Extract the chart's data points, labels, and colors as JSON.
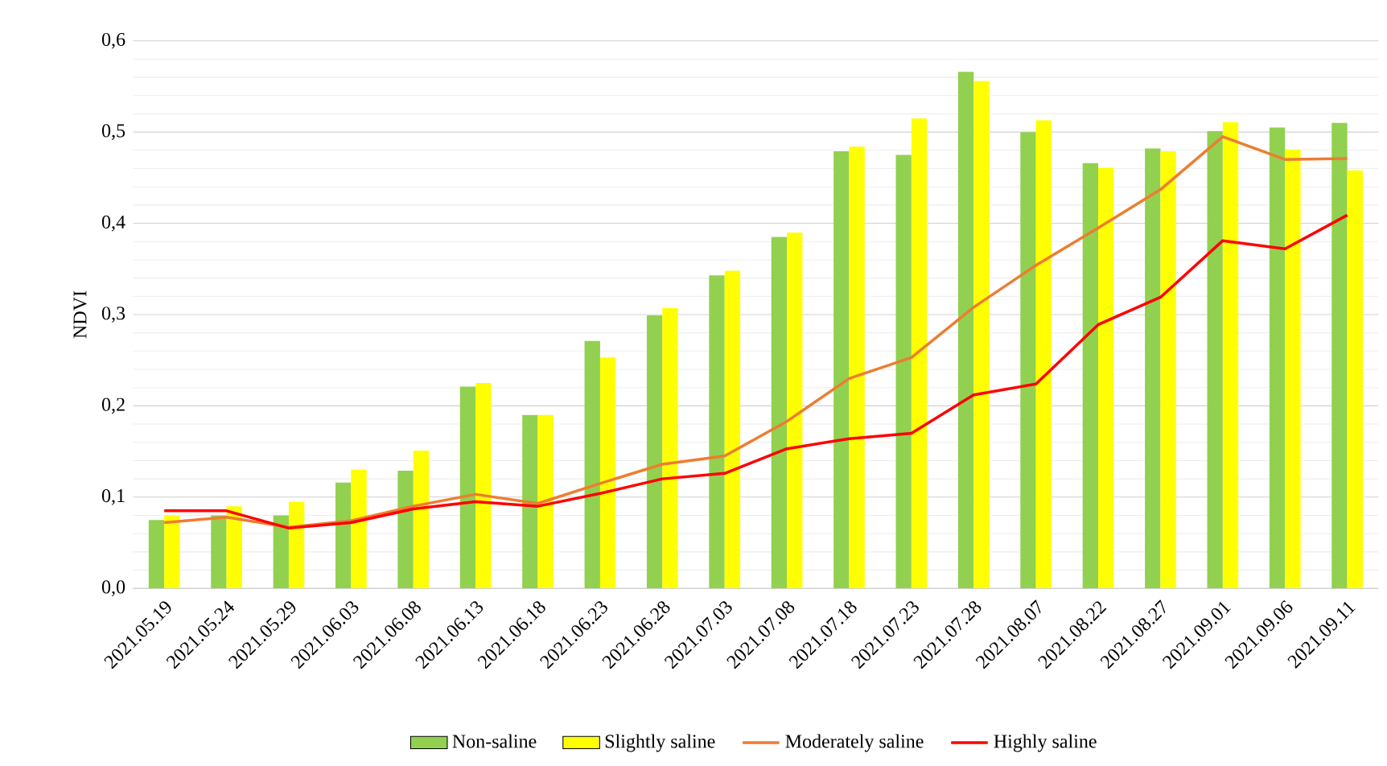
{
  "chart_data": {
    "type": "bar",
    "ylabel": "NDVI",
    "categories": [
      "2021.05.19",
      "2021.05.24",
      "2021.05.29",
      "2021.06.03",
      "2021.06.08",
      "2021.06.13",
      "2021.06.18",
      "2021.06.23",
      "2021.06.28",
      "2021.07.03",
      "2021.07.08",
      "2021.07.18",
      "2021.07.23",
      "2021.07.28",
      "2021.08.07",
      "2021.08.22",
      "2021.08.27",
      "2021.09.01",
      "2021.09.06",
      "2021.09.11"
    ],
    "series": [
      {
        "name": "Non-saline",
        "color": "#92d050",
        "values": [
          0.075,
          0.08,
          0.08,
          0.116,
          0.129,
          0.221,
          0.19,
          0.271,
          0.299,
          0.343,
          0.385,
          0.479,
          0.475,
          0.566,
          0.5,
          0.466,
          0.482,
          0.501,
          0.505,
          0.51
        ]
      },
      {
        "name": "Slightly saline",
        "color": "#ffff00",
        "values": [
          0.08,
          0.09,
          0.095,
          0.13,
          0.151,
          0.225,
          0.19,
          0.253,
          0.307,
          0.348,
          0.39,
          0.484,
          0.515,
          0.556,
          0.513,
          0.461,
          0.479,
          0.511,
          0.481,
          0.458
        ]
      },
      {
        "name": "Moderately saline",
        "type": "line",
        "color": "#ed7d31",
        "values": [
          0.072,
          0.078,
          0.067,
          0.074,
          0.09,
          0.103,
          0.093,
          0.115,
          0.136,
          0.145,
          0.183,
          0.23,
          0.253,
          0.308,
          0.354,
          0.395,
          0.437,
          0.495,
          0.47,
          0.471
        ]
      },
      {
        "name": "Highly saline",
        "type": "line",
        "color": "#ff0000",
        "values": [
          0.085,
          0.085,
          0.066,
          0.072,
          0.087,
          0.095,
          0.09,
          0.104,
          0.12,
          0.126,
          0.153,
          0.164,
          0.17,
          0.212,
          0.224,
          0.289,
          0.319,
          0.381,
          0.372,
          0.409
        ]
      }
    ],
    "ylim": [
      0,
      0.6
    ],
    "yticks": [
      {
        "value": 0,
        "label": "0,0"
      },
      {
        "value": 0.1,
        "label": "0,1"
      },
      {
        "value": 0.2,
        "label": "0,2"
      },
      {
        "value": 0.3,
        "label": "0,3"
      },
      {
        "value": 0.4,
        "label": "0,4"
      },
      {
        "value": 0.5,
        "label": "0,5"
      },
      {
        "value": 0.6,
        "label": "0,6"
      }
    ],
    "grid": "y",
    "legend": "bottom",
    "marker": "none",
    "line_style": "solid"
  }
}
